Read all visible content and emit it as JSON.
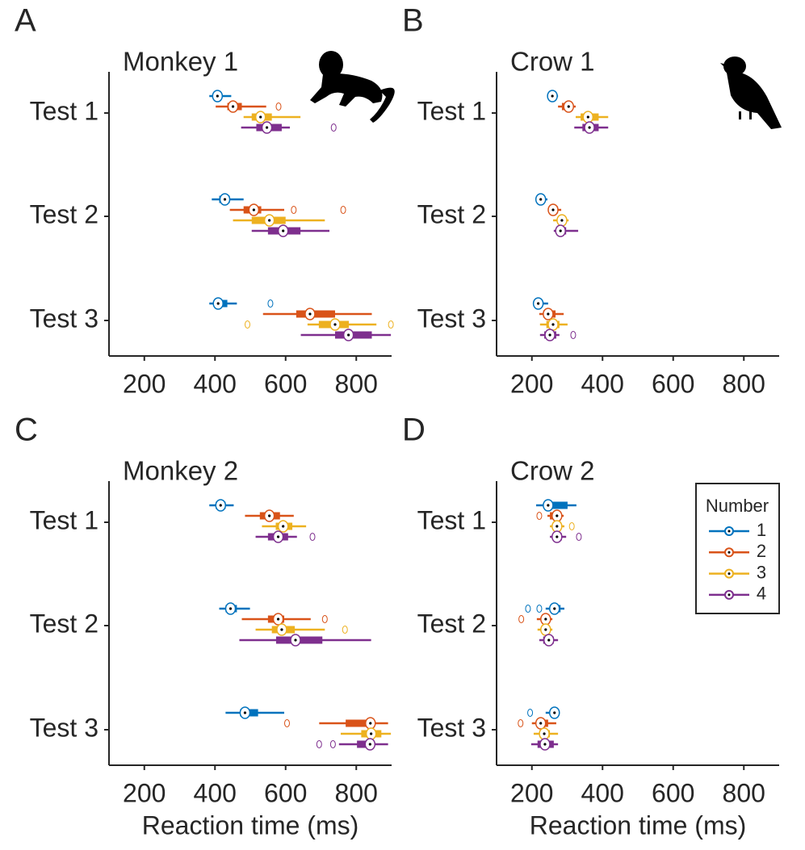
{
  "chart_data": [
    {
      "type": "boxplot",
      "panel": "A",
      "title": "Monkey 1",
      "categories": [
        "Test 1",
        "Test 2",
        "Test 3"
      ],
      "xlim": [
        100,
        900
      ],
      "xticks": [
        200,
        400,
        600,
        800
      ],
      "series": [
        {
          "color": "#0072BD",
          "whisker_low": [
            384,
            391,
            384
          ],
          "q1": [
            396,
            412,
            400
          ],
          "median": [
            407,
            428,
            409
          ],
          "q3": [
            418,
            442,
            435
          ],
          "whisker_high": [
            446,
            481,
            462
          ],
          "outliers": [
            [],
            [],
            [
              557
            ]
          ]
        },
        {
          "color": "#D95319",
          "whisker_low": [
            402,
            442,
            536
          ],
          "q1": [
            435,
            481,
            630
          ],
          "median": [
            451,
            510,
            669
          ],
          "q3": [
            476,
            531,
            740
          ],
          "whisker_high": [
            545,
            596,
            844
          ],
          "outliers": [
            [
              580
            ],
            [
              623,
              763
            ],
            []
          ]
        },
        {
          "color": "#EDB120",
          "whisker_low": [
            481,
            451,
            662
          ],
          "q1": [
            504,
            504,
            694
          ],
          "median": [
            529,
            554,
            740
          ],
          "q3": [
            561,
            600,
            779
          ],
          "whisker_high": [
            642,
            711,
            857
          ],
          "outliers": [
            [],
            [],
            [
              492,
              898
            ]
          ]
        },
        {
          "color": "#7E2F8E",
          "whisker_low": [
            474,
            504,
            643
          ],
          "q1": [
            517,
            550,
            740
          ],
          "median": [
            547,
            593,
            778
          ],
          "q3": [
            589,
            642,
            844
          ],
          "whisker_high": [
            612,
            724,
            898
          ],
          "outliers": [
            [
              736
            ],
            [],
            []
          ]
        }
      ]
    },
    {
      "type": "boxplot",
      "panel": "B",
      "title": "Crow 1",
      "categories": [
        "Test 1",
        "Test 2",
        "Test 3"
      ],
      "xlim": [
        100,
        900
      ],
      "xticks": [
        200,
        400,
        600,
        800
      ],
      "series": [
        {
          "color": "#0072BD",
          "whisker_low": [
            244,
            212,
            205
          ],
          "q1": [
            255,
            218,
            211
          ],
          "median": [
            258,
            225,
            218
          ],
          "q3": [
            267,
            236,
            228
          ],
          "whisker_high": [
            274,
            244,
            246
          ],
          "outliers": [
            [],
            [],
            []
          ]
        },
        {
          "color": "#D95319",
          "whisker_low": [
            274,
            246,
            221
          ],
          "q1": [
            285,
            253,
            232
          ],
          "median": [
            304,
            260,
            246
          ],
          "q3": [
            313,
            274,
            267
          ],
          "whisker_high": [
            324,
            283,
            290
          ],
          "outliers": [
            [],
            [],
            []
          ]
        },
        {
          "color": "#EDB120",
          "whisker_low": [
            324,
            260,
            223
          ],
          "q1": [
            338,
            274,
            241
          ],
          "median": [
            359,
            285,
            260
          ],
          "q3": [
            389,
            292,
            278
          ],
          "whisker_high": [
            416,
            304,
            301
          ],
          "outliers": [
            [],
            [],
            []
          ]
        },
        {
          "color": "#7E2F8E",
          "whisker_low": [
            320,
            262,
            223
          ],
          "q1": [
            343,
            269,
            235
          ],
          "median": [
            363,
            281,
            251
          ],
          "q3": [
            389,
            297,
            269
          ],
          "whisker_high": [
            416,
            331,
            278
          ],
          "outliers": [
            [],
            [],
            [
              317
            ]
          ]
        }
      ]
    },
    {
      "type": "boxplot",
      "panel": "C",
      "title": "Monkey 2",
      "categories": [
        "Test 1",
        "Test 2",
        "Test 3"
      ],
      "xlim": [
        100,
        900
      ],
      "xticks": [
        200,
        400,
        600,
        800
      ],
      "xlabel": "Reaction time (ms)",
      "series": [
        {
          "color": "#0072BD",
          "whisker_low": [
            384,
            412,
            430
          ],
          "q1": [
            402,
            430,
            471
          ],
          "median": [
            416,
            444,
            485
          ],
          "q3": [
            430,
            462,
            522
          ],
          "whisker_high": [
            453,
            499,
            596
          ],
          "outliers": [
            [],
            [],
            []
          ]
        },
        {
          "color": "#D95319",
          "whisker_low": [
            485,
            476,
            695
          ],
          "q1": [
            527,
            550,
            770
          ],
          "median": [
            554,
            579,
            840
          ],
          "q3": [
            584,
            596,
            846
          ],
          "whisker_high": [
            623,
            671,
            890
          ],
          "outliers": [
            [],
            [
              711
            ],
            [
              604
            ]
          ]
        },
        {
          "color": "#EDB120",
          "whisker_low": [
            533,
            515,
            756
          ],
          "q1": [
            572,
            561,
            814
          ],
          "median": [
            593,
            589,
            842
          ],
          "q3": [
            619,
            626,
            871
          ],
          "whisker_high": [
            658,
            711,
            898
          ],
          "outliers": [
            [],
            [
              768
            ],
            []
          ]
        },
        {
          "color": "#7E2F8E",
          "whisker_low": [
            515,
            469,
            751
          ],
          "q1": [
            550,
            573,
            802
          ],
          "median": [
            579,
            628,
            839
          ],
          "q3": [
            607,
            704,
            844
          ],
          "whisker_high": [
            632,
            842,
            890
          ],
          "outliers": [
            [
              676
            ],
            [],
            [
              695,
              734
            ]
          ]
        }
      ]
    },
    {
      "type": "boxplot",
      "panel": "D",
      "title": "Crow 2",
      "categories": [
        "Test 1",
        "Test 2",
        "Test 3"
      ],
      "xlim": [
        100,
        900
      ],
      "xticks": [
        200,
        400,
        600,
        800
      ],
      "xlabel": "Reaction time (ms)",
      "legend_title": "Number",
      "legend": "upper right",
      "series": [
        {
          "name": "1",
          "color": "#0072BD",
          "whisker_low": [
            212,
            239,
            239
          ],
          "q1": [
            239,
            255,
            258
          ],
          "median": [
            246,
            264,
            264
          ],
          "q3": [
            301,
            281,
            271
          ],
          "whisker_high": [
            326,
            292,
            274
          ],
          "outliers": [
            [],
            [
              189,
              221
            ],
            [
              195
            ]
          ]
        },
        {
          "name": "2",
          "color": "#D95319",
          "whisker_low": [
            244,
            214,
            200
          ],
          "q1": [
            251,
            228,
            216
          ],
          "median": [
            271,
            239,
            225
          ],
          "q3": [
            279,
            251,
            246
          ],
          "whisker_high": [
            290,
            258,
            269
          ],
          "outliers": [
            [
              221
            ],
            [
              170
            ],
            [
              168
            ]
          ]
        },
        {
          "name": "3",
          "color": "#EDB120",
          "whisker_low": [
            251,
            216,
            205
          ],
          "q1": [
            262,
            228,
            221
          ],
          "median": [
            271,
            239,
            235
          ],
          "q3": [
            283,
            251,
            251
          ],
          "whisker_high": [
            292,
            258,
            274
          ],
          "outliers": [
            [
              313
            ],
            [],
            []
          ]
        },
        {
          "name": "4",
          "color": "#7E2F8E",
          "whisker_low": [
            251,
            221,
            198
          ],
          "q1": [
            262,
            232,
            216
          ],
          "median": [
            271,
            248,
            237
          ],
          "q3": [
            285,
            262,
            262
          ],
          "whisker_high": [
            297,
            274,
            274
          ],
          "outliers": [
            [
              333
            ],
            [],
            []
          ]
        }
      ]
    }
  ]
}
